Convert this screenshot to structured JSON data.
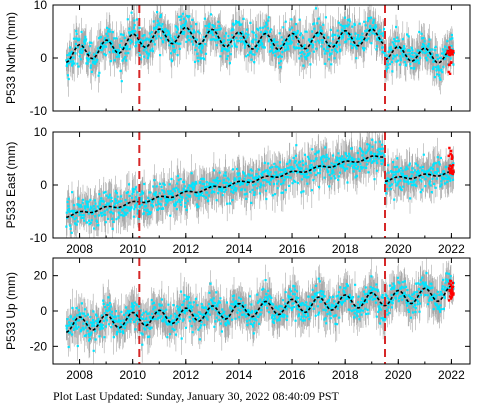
{
  "footer": "Plot Last Updated:   Sunday, January 30, 2022 08:40:09 PST",
  "colors": {
    "error_bars": "#a9a9a9",
    "daily": "#00e5ff",
    "recent": "#ff0000",
    "model": "#000000",
    "event_line": "#d62728"
  },
  "chart_data": [
    {
      "type": "scatter",
      "ylabel": "P533 North (mm)",
      "xlim": [
        2007.0,
        2022.7
      ],
      "ylim": [
        -10,
        10
      ],
      "yticks": [
        -10,
        0,
        10
      ],
      "xticks": [
        2008,
        2010,
        2012,
        2014,
        2016,
        2018,
        2020,
        2022
      ],
      "show_xtick_labels": false,
      "event_lines": [
        2010.25,
        2019.5
      ],
      "model": {
        "segments": [
          {
            "x_start": 2007.5,
            "x_end": 2019.5,
            "offset": 0.5,
            "slope": 0.3,
            "amplitude": 1.5,
            "phase": 0.0
          },
          {
            "x_start": 2019.5,
            "x_end": 2022.1,
            "offset": 1.0,
            "slope": -0.3,
            "amplitude": 1.3,
            "phase": 0.0
          }
        ],
        "bumps": [
          {
            "center": 2011.5,
            "width": 2.5,
            "height": 2.5
          }
        ]
      },
      "noise": 1.6,
      "error_bar_halfwidth": 2.5,
      "recent_points": {
        "x_start": 2021.85,
        "x_end": 2022.08,
        "y_center": -0.5,
        "spread": 2.5
      }
    },
    {
      "type": "scatter",
      "ylabel": "P533 East (mm)",
      "xlim": [
        2007.0,
        2022.7
      ],
      "ylim": [
        -10,
        10
      ],
      "yticks": [
        -10,
        0,
        10
      ],
      "xticks": [
        2008,
        2010,
        2012,
        2014,
        2016,
        2018,
        2020,
        2022
      ],
      "show_xtick_labels": true,
      "event_lines": [
        2010.25,
        2019.5
      ],
      "model": {
        "segments": [
          {
            "x_start": 2007.5,
            "x_end": 2019.5,
            "offset": -5.8,
            "slope": 0.95,
            "amplitude": 0.3,
            "phase": 0.0
          },
          {
            "x_start": 2019.5,
            "x_end": 2022.1,
            "offset": 1.0,
            "slope": 0.5,
            "amplitude": 0.3,
            "phase": 0.0
          }
        ],
        "bumps": []
      },
      "noise": 1.5,
      "error_bar_halfwidth": 2.6,
      "recent_points": {
        "x_start": 2021.85,
        "x_end": 2022.08,
        "y_center": 4.5,
        "spread": 2.5
      }
    },
    {
      "type": "scatter",
      "ylabel": "P533 Up (mm)",
      "xlim": [
        2007.0,
        2022.7
      ],
      "ylim": [
        -30,
        30
      ],
      "yticks": [
        -20,
        0,
        20
      ],
      "xticks": [
        2008,
        2010,
        2012,
        2014,
        2016,
        2018,
        2020,
        2022
      ],
      "show_xtick_labels": true,
      "event_lines": [
        2010.25,
        2019.5
      ],
      "model": {
        "segments": [
          {
            "x_start": 2007.5,
            "x_end": 2022.1,
            "offset": -8.0,
            "slope": 1.25,
            "amplitude": 4.0,
            "phase": 0.0
          }
        ],
        "bumps": []
      },
      "noise": 4.5,
      "error_bar_halfwidth": 8.0,
      "recent_points": {
        "x_start": 2021.9,
        "x_end": 2022.08,
        "y_center": 12.0,
        "spread": 6.0
      }
    }
  ]
}
